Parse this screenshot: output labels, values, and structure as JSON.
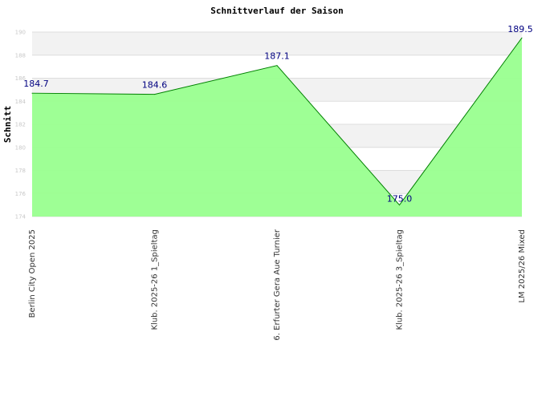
{
  "chart_data": {
    "type": "area",
    "title": "Schnittverlauf der Saison",
    "xlabel": "",
    "ylabel": "Schnitt",
    "categories": [
      "Berlin City Open 2025",
      "Klub. 2025-26  1_Spieltag",
      "6. Erfurter Gera Aue Turnier",
      "Klub. 2025-26  3_Spieltag",
      "LM 2025/26 Mixed"
    ],
    "series": [
      {
        "values": [
          184.7,
          184.6,
          187.1,
          175.0,
          189.5
        ]
      }
    ],
    "data_labels": [
      "184.7",
      "184.6",
      "187.1",
      "175.0",
      "189.5"
    ],
    "ylim": [
      174,
      190
    ],
    "yticks": [
      174,
      176,
      178,
      180,
      182,
      184,
      186,
      188,
      190
    ],
    "ytick_labels": [
      "174",
      "176",
      "178",
      "180",
      "182",
      "184",
      "186",
      "188",
      "190"
    ],
    "grid": true,
    "legend": "none",
    "colors": {
      "fill": "#99ff8f",
      "line": "#008000",
      "band": "#f2f2f2",
      "grid": "#dddddd",
      "label": "#000080"
    }
  }
}
